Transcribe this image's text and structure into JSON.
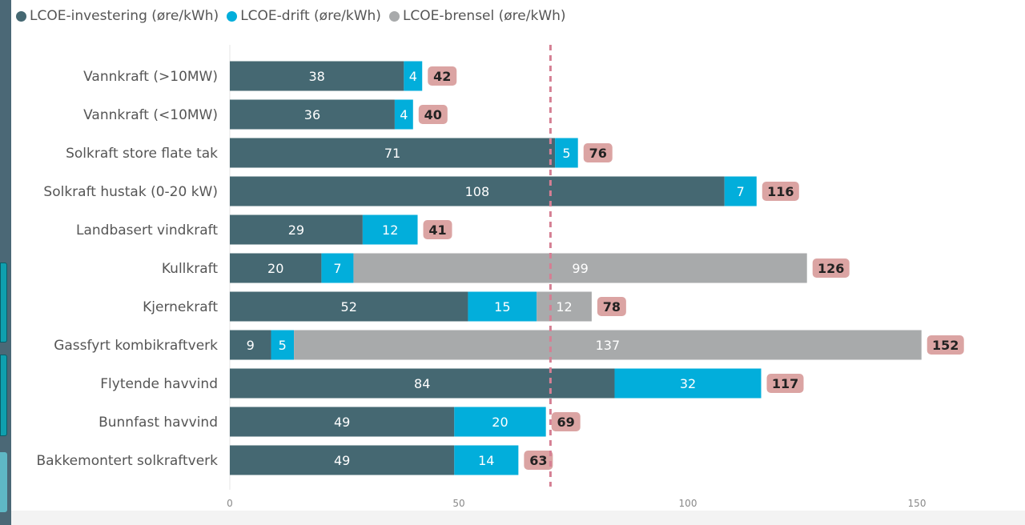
{
  "chart_data": {
    "type": "bar",
    "orientation": "horizontal",
    "stacked": true,
    "categories": [
      "Vannkraft (>10MW)",
      "Vannkraft (<10MW)",
      "Solkraft store flate tak",
      "Solkraft hustak (0-20 kW)",
      "Landbasert vindkraft",
      "Kullkraft",
      "Kjernekraft",
      "Gassfyrt kombikraftverk",
      "Flytende havvind",
      "Bunnfast havvind",
      "Bakkemontert solkraftverk"
    ],
    "series": [
      {
        "name": "LCOE-investering (øre/kWh)",
        "color": "#456872",
        "values": [
          38,
          36,
          71,
          108,
          29,
          20,
          52,
          9,
          84,
          49,
          49
        ]
      },
      {
        "name": "LCOE-drift (øre/kWh)",
        "color": "#02aedb",
        "values": [
          4,
          4,
          5,
          7,
          12,
          7,
          15,
          5,
          32,
          20,
          14
        ]
      },
      {
        "name": "LCOE-brensel (øre/kWh)",
        "color": "#a8aaab",
        "values": [
          null,
          null,
          null,
          null,
          null,
          99,
          12,
          137,
          null,
          null,
          null
        ]
      }
    ],
    "totals": [
      42,
      40,
      76,
      116,
      41,
      126,
      78,
      152,
      117,
      69,
      63
    ],
    "total_label_color": "#dba4a3",
    "reference_line": {
      "value": 70,
      "color": "#d57f93",
      "style": "dashed"
    },
    "xlim": [
      0,
      160
    ],
    "xticks": [
      0,
      50,
      100,
      150
    ],
    "legend_position": "top-left",
    "grid": false
  }
}
